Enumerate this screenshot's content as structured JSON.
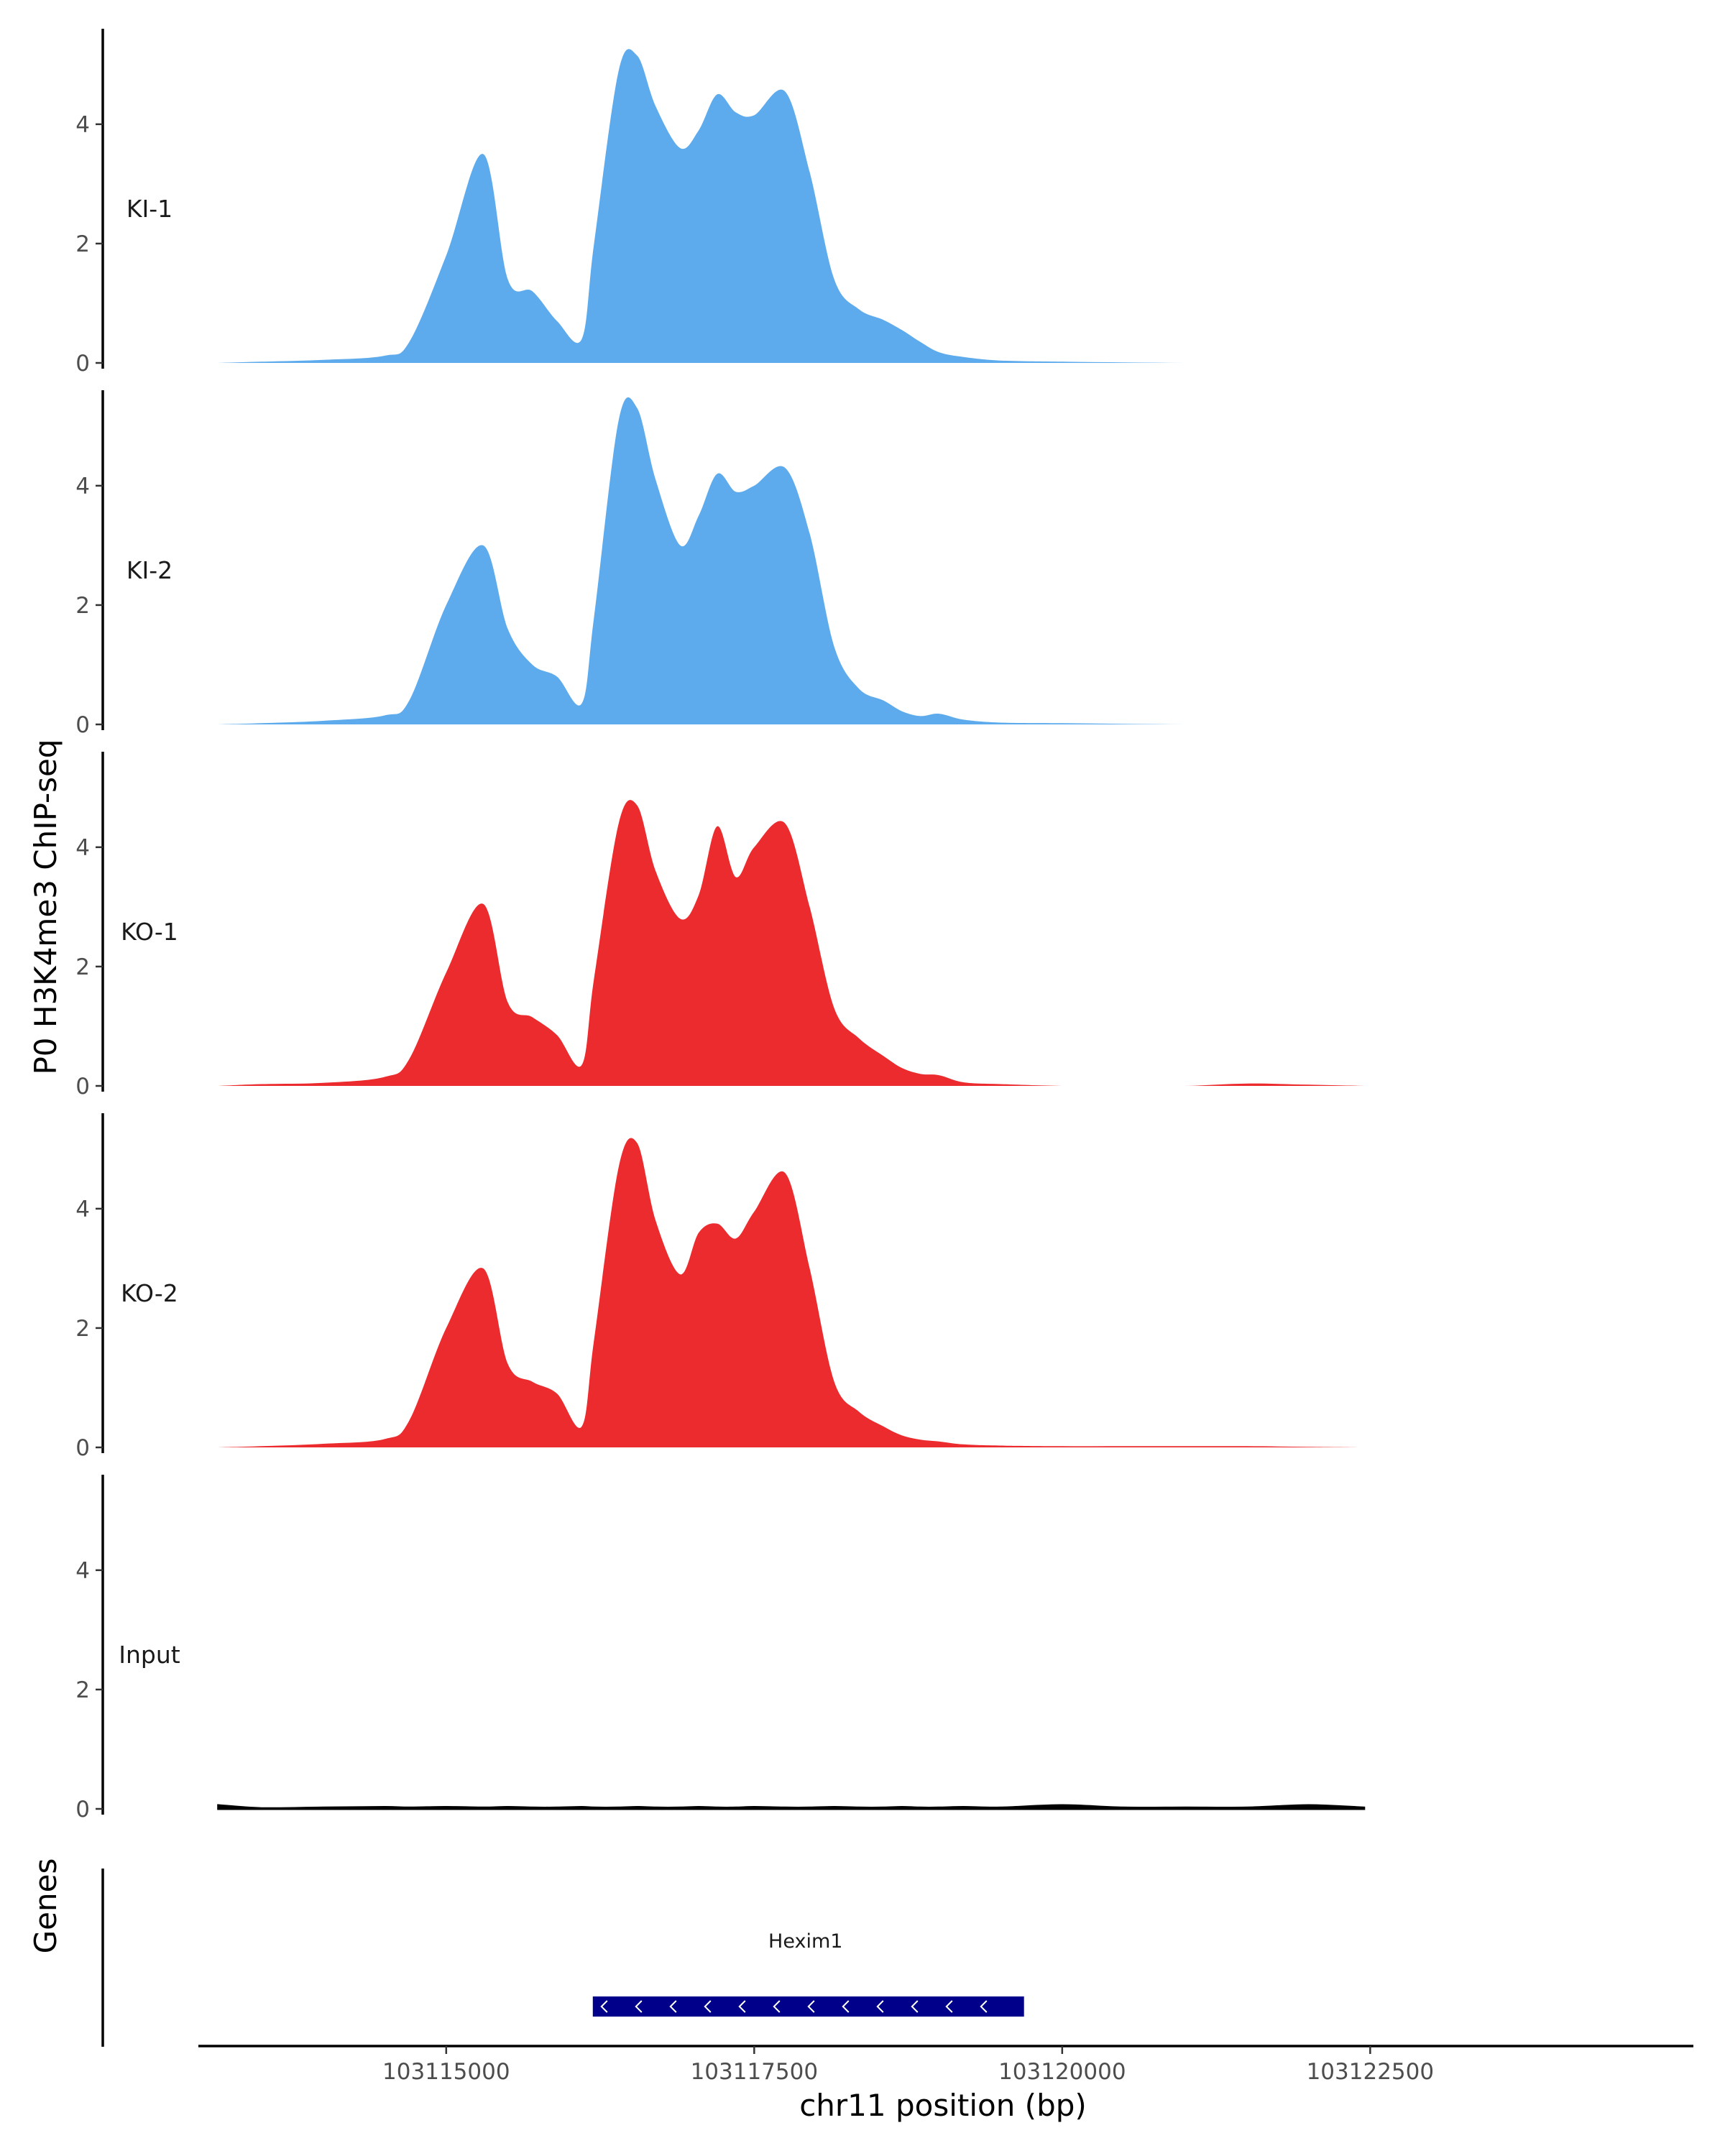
{
  "chart_data": {
    "type": "area",
    "ylabel": "P0 H3K4me3 ChIP-seq",
    "xlabel": "chr11 position (bp)",
    "genes_label": "Genes",
    "xlim": [
      103113000,
      103125100
    ],
    "x_ticks": [
      103115000,
      103117500,
      103120000,
      103122500
    ],
    "x_tick_labels": [
      "103115000",
      "103117500",
      "103120000",
      "103122500"
    ],
    "ylim": [
      0,
      5.6
    ],
    "y_ticks": [
      0,
      2,
      4
    ],
    "x": [
      103113150,
      103113500,
      103114000,
      103114500,
      103114700,
      103115000,
      103115300,
      103115500,
      103115700,
      103115900,
      103116100,
      103116200,
      103116400,
      103116550,
      103116700,
      103116900,
      103117050,
      103117200,
      103117350,
      103117500,
      103117750,
      103117950,
      103118150,
      103118350,
      103118550,
      103118700,
      103118850,
      103119000,
      103119200,
      103119500,
      103120000,
      103120500,
      103121000,
      103121500,
      103122000,
      103122450
    ],
    "series": [
      {
        "name": "KI-1",
        "color": "#5dabec",
        "values": [
          0.0,
          0.02,
          0.05,
          0.12,
          0.35,
          1.8,
          3.5,
          1.4,
          1.2,
          0.7,
          0.4,
          2.0,
          4.9,
          5.15,
          4.3,
          3.6,
          3.9,
          4.5,
          4.2,
          4.15,
          4.55,
          3.2,
          1.4,
          0.9,
          0.72,
          0.55,
          0.35,
          0.18,
          0.1,
          0.04,
          0.02,
          0.01,
          0.0,
          0.0,
          0.0,
          0.0
        ]
      },
      {
        "name": "KI-2",
        "color": "#5dabec",
        "values": [
          0.0,
          0.02,
          0.06,
          0.15,
          0.4,
          2.0,
          3.0,
          1.6,
          1.0,
          0.8,
          0.35,
          1.8,
          5.1,
          5.3,
          4.1,
          3.0,
          3.5,
          4.2,
          3.9,
          4.0,
          4.3,
          3.2,
          1.3,
          0.6,
          0.4,
          0.22,
          0.14,
          0.18,
          0.08,
          0.03,
          0.02,
          0.01,
          0.0,
          0.0,
          0.0,
          0.0
        ]
      },
      {
        "name": "KO-1",
        "color": "#ec2b2e",
        "values": [
          0.0,
          0.03,
          0.05,
          0.15,
          0.45,
          1.9,
          3.05,
          1.4,
          1.15,
          0.85,
          0.35,
          1.8,
          4.4,
          4.7,
          3.6,
          2.8,
          3.2,
          4.35,
          3.5,
          4.0,
          4.4,
          3.0,
          1.3,
          0.8,
          0.5,
          0.3,
          0.2,
          0.18,
          0.06,
          0.03,
          0.0,
          0.0,
          0.0,
          0.04,
          0.02,
          0.0
        ]
      },
      {
        "name": "KO-2",
        "color": "#ec2b2e",
        "values": [
          0.0,
          0.02,
          0.06,
          0.14,
          0.45,
          2.0,
          3.0,
          1.4,
          1.1,
          0.9,
          0.35,
          1.8,
          4.7,
          5.1,
          3.8,
          2.9,
          3.6,
          3.75,
          3.5,
          3.95,
          4.6,
          3.0,
          1.1,
          0.6,
          0.35,
          0.2,
          0.13,
          0.1,
          0.05,
          0.03,
          0.02,
          0.02,
          0.02,
          0.02,
          0.01,
          0.0
        ]
      },
      {
        "name": "Input",
        "color": "#000000",
        "values": [
          0.06,
          0.01,
          0.02,
          0.03,
          0.02,
          0.03,
          0.02,
          0.03,
          0.02,
          0.02,
          0.03,
          0.02,
          0.02,
          0.03,
          0.02,
          0.02,
          0.03,
          0.02,
          0.02,
          0.03,
          0.02,
          0.02,
          0.03,
          0.02,
          0.02,
          0.03,
          0.02,
          0.02,
          0.03,
          0.02,
          0.06,
          0.02,
          0.02,
          0.02,
          0.06,
          0.02
        ]
      }
    ],
    "genes": [
      {
        "name": "Hexim1",
        "start": 103116190,
        "end": 103119690,
        "color": "#00008b",
        "strand": "-"
      }
    ]
  }
}
